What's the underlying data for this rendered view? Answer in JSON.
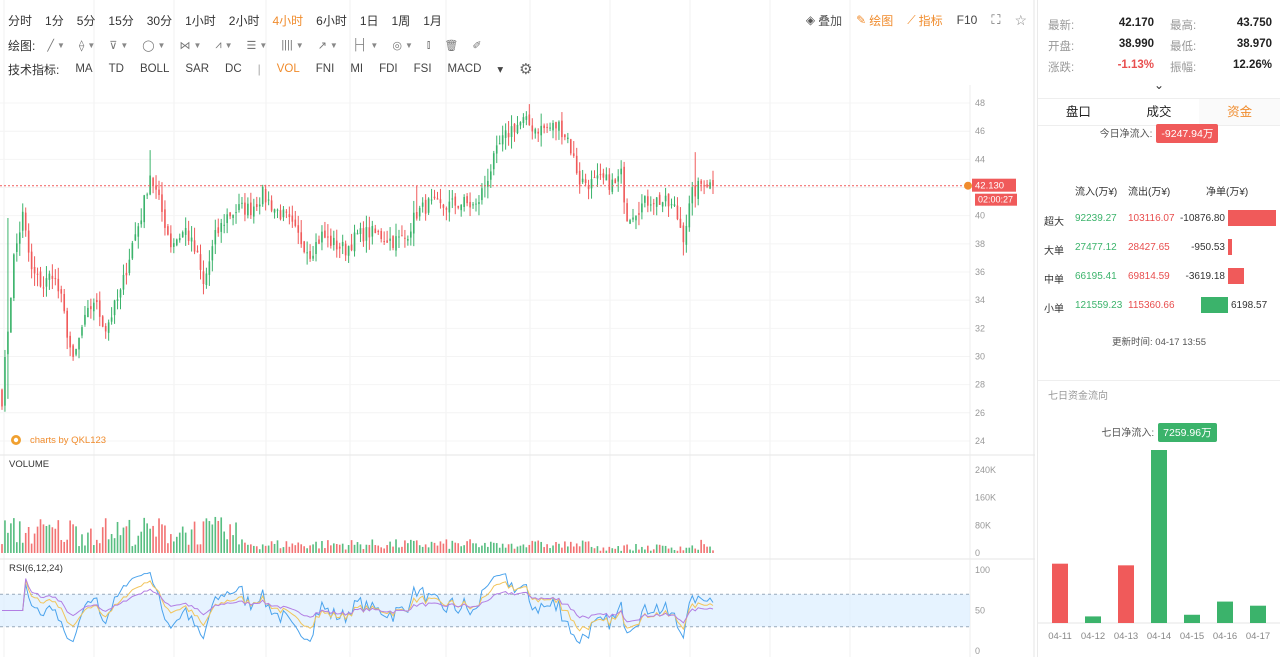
{
  "toolbar": {
    "timeframes": [
      "分时",
      "1分",
      "5分",
      "15分",
      "30分",
      "1小时",
      "2小时",
      "4小时",
      "6小时",
      "1日",
      "1周",
      "1月"
    ],
    "active_timeframe": "4小时",
    "overlay_label": "叠加",
    "draw_label": "绘图",
    "indicator_label": "指标",
    "f10_label": "F10",
    "draw_row_label": "绘图:",
    "indicator_row_label": "技术指标:",
    "indicators": [
      "MA",
      "TD",
      "BOLL",
      "SAR",
      "DC",
      "VOL",
      "FNI",
      "MI",
      "FDI",
      "FSI",
      "MACD"
    ],
    "active_indicator": "VOL"
  },
  "chart_data": [
    {
      "type": "candlestick",
      "title": "",
      "y_ticks": [
        "48",
        "46",
        "44",
        "42",
        "40",
        "38",
        "36",
        "34",
        "32",
        "30",
        "28",
        "26",
        "24"
      ],
      "ylim": [
        23.5,
        48.5
      ],
      "last_price_label": "42.130",
      "countdown_label": "02:00:27",
      "watermark": "charts by QKL123",
      "last_price": 42.13,
      "anchors": [
        [
          0,
          27
        ],
        [
          2,
          32
        ],
        [
          4,
          37
        ],
        [
          7,
          40
        ],
        [
          10,
          36
        ],
        [
          14,
          35
        ],
        [
          17,
          36
        ],
        [
          20,
          34
        ],
        [
          24,
          29.5
        ],
        [
          27,
          32
        ],
        [
          31,
          34
        ],
        [
          35,
          32
        ],
        [
          40,
          34.5
        ],
        [
          44,
          38
        ],
        [
          47,
          40
        ],
        [
          50,
          43
        ],
        [
          53,
          41
        ],
        [
          57,
          38
        ],
        [
          62,
          39
        ],
        [
          66,
          37
        ],
        [
          68,
          35
        ],
        [
          72,
          38.5
        ],
        [
          76,
          40
        ],
        [
          80,
          40.5
        ],
        [
          84,
          40.5
        ],
        [
          88,
          41.5
        ],
        [
          92,
          40.5
        ],
        [
          96,
          39.8
        ],
        [
          100,
          38.5
        ],
        [
          104,
          37.4
        ],
        [
          108,
          38.6
        ],
        [
          112,
          38
        ],
        [
          116,
          37.6
        ],
        [
          120,
          38.6
        ],
        [
          124,
          38.8
        ],
        [
          128,
          38.6
        ],
        [
          132,
          38.2
        ],
        [
          136,
          38.4
        ],
        [
          140,
          40.2
        ],
        [
          144,
          40.8
        ],
        [
          148,
          40.6
        ],
        [
          152,
          40.8
        ],
        [
          156,
          40.9
        ],
        [
          160,
          40.6
        ],
        [
          164,
          42.8
        ],
        [
          168,
          45
        ],
        [
          172,
          46.2
        ],
        [
          176,
          46.7
        ],
        [
          180,
          46.2
        ],
        [
          184,
          46.2
        ],
        [
          188,
          46.4
        ],
        [
          191,
          45.5
        ],
        [
          195,
          42.5
        ],
        [
          199,
          42.3
        ],
        [
          203,
          42.5
        ],
        [
          207,
          42.2
        ],
        [
          209,
          42.9
        ],
        [
          211,
          40
        ],
        [
          215,
          40.6
        ],
        [
          219,
          41.2
        ],
        [
          223,
          41
        ],
        [
          227,
          40.5
        ],
        [
          230,
          38.6
        ],
        [
          233,
          41.5
        ],
        [
          237,
          42.5
        ],
        [
          240,
          42.13
        ]
      ]
    },
    {
      "type": "bar",
      "title": "VOLUME",
      "y_ticks": [
        "240K",
        "160K",
        "80K",
        "0"
      ],
      "ylim": [
        0,
        240000
      ]
    },
    {
      "type": "line",
      "title": "RSI(6,12,24)",
      "y_ticks": [
        "100",
        "50",
        "0"
      ],
      "ylim": [
        0,
        100
      ],
      "band": [
        30,
        70
      ],
      "series": [
        {
          "name": "",
          "color": "#4ba3ec"
        },
        {
          "name": "",
          "color": "#f2c55c"
        },
        {
          "name": "",
          "color": "#b27ee3"
        }
      ]
    },
    {
      "type": "bar",
      "title": "七日资金流向",
      "categories": [
        "04-11",
        "04-12",
        "04-13",
        "04-14",
        "04-15",
        "04-16",
        "04-17"
      ],
      "values": [
        3600,
        400,
        3500,
        10500,
        500,
        1300,
        1050
      ]
    }
  ],
  "quote": {
    "latest_label": "最新:",
    "latest": "42.170",
    "high_label": "最高:",
    "high": "43.750",
    "open_label": "开盘:",
    "open": "38.990",
    "low_label": "最低:",
    "low": "38.970",
    "change_label": "涨跌:",
    "change": "-1.13%",
    "amplitude_label": "振幅:",
    "amplitude": "12.26%"
  },
  "tabs": [
    "盘口",
    "成交",
    "资金"
  ],
  "active_tab": "资金",
  "funds": {
    "today_label": "今日净流入:",
    "today_value": "-9247.94万",
    "col_in": "流入(万¥)",
    "col_out": "流出(万¥)",
    "col_net": "净单(万¥)",
    "rows": [
      {
        "name": "超大",
        "inflow": "92239.27",
        "outflow": "103116.07",
        "net": "-10876.80",
        "net_value": -10876.8
      },
      {
        "name": "大单",
        "inflow": "27477.12",
        "outflow": "28427.65",
        "net": "-950.53",
        "net_value": -950.53
      },
      {
        "name": "中单",
        "inflow": "66195.41",
        "outflow": "69814.59",
        "net": "-3619.18",
        "net_value": -3619.18
      },
      {
        "name": "小单",
        "inflow": "121559.23",
        "outflow": "115360.66",
        "net": "6198.57",
        "net_value": 6198.57
      }
    ],
    "update_label": "更新时间:",
    "update_time": "04-17 13:55",
    "seven_title": "七日资金流向",
    "seven_net_label": "七日净流入:",
    "seven_net_value": "7259.96万"
  },
  "colors": {
    "up": "#3bb36b",
    "down": "#f05a5a",
    "accent": "#f08c2d"
  }
}
